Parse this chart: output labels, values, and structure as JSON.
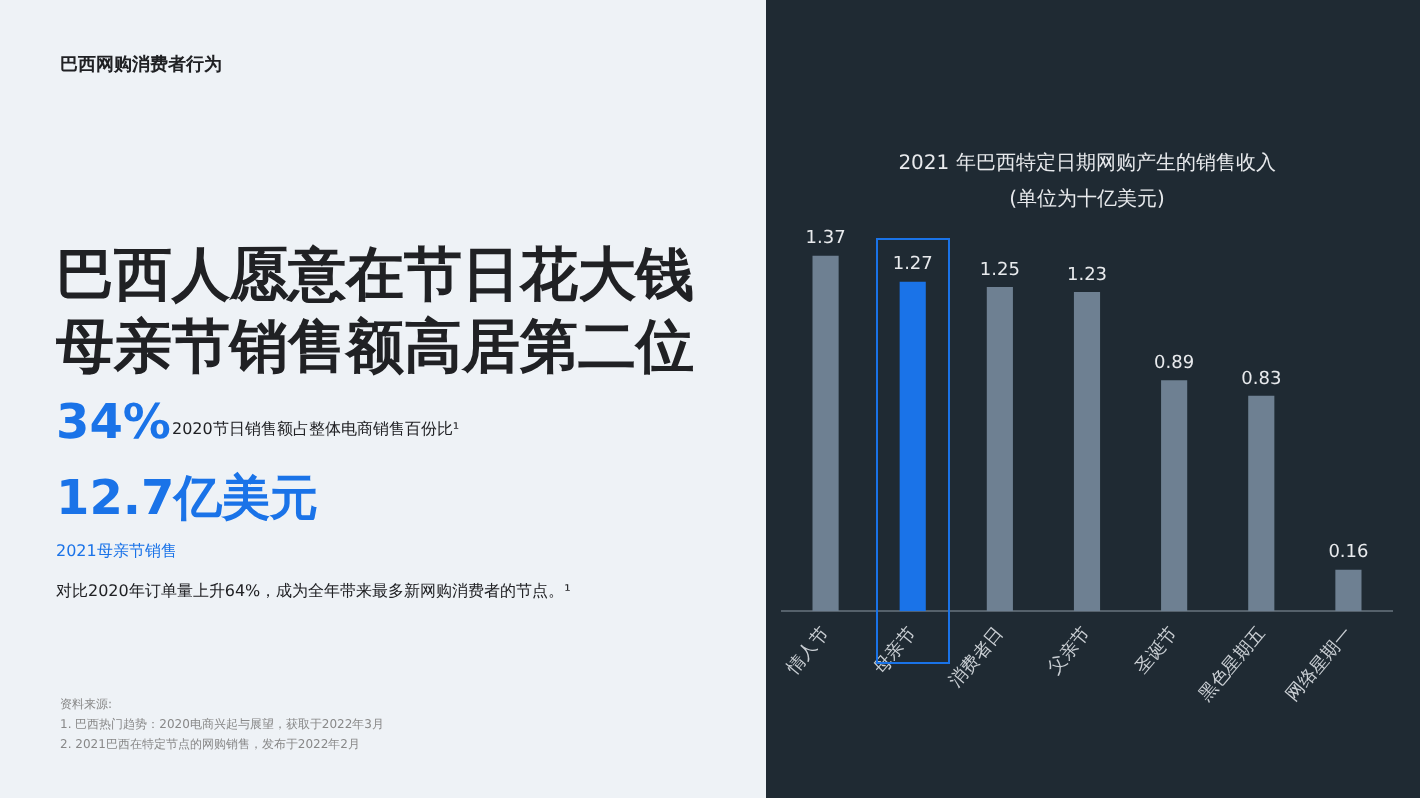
{
  "chart_data": {
    "type": "bar",
    "title": "2021 年巴西特定日期网购产生的销售收入",
    "subtitle": "(单位为十亿美元)",
    "categories": [
      "情人节",
      "母亲节",
      "消费者日",
      "父亲节",
      "圣诞节",
      "黑色星期五",
      "网络星期一"
    ],
    "values": [
      1.37,
      1.27,
      1.25,
      1.23,
      0.89,
      0.83,
      0.16
    ],
    "colors": [
      "#6e8092",
      "#1a73e8",
      "#6e8092",
      "#6e8092",
      "#6e8092",
      "#6e8092",
      "#6e8092"
    ],
    "data_labels": true,
    "grid": false,
    "legend": false,
    "tick_labels": "x",
    "annotations": [
      "巴西网购消费者行为",
      "巴西人愿意在节日花大钱",
      "母亲节销售额高居第二位",
      "34%",
      "2020节日销售额占整体电商销售百份比¹",
      "12.7亿美元",
      "2021母亲节销售",
      "对比2020年订单量上升64%，成为全年带来最多新网购消费者的节点。¹",
      "资料来源:",
      "1. 巴西热门趋势：2020电商兴起与展望，获取于2022年3月",
      "2. 2021巴西在特定节点的网购销售，发布于2022年2月"
    ]
  }
}
